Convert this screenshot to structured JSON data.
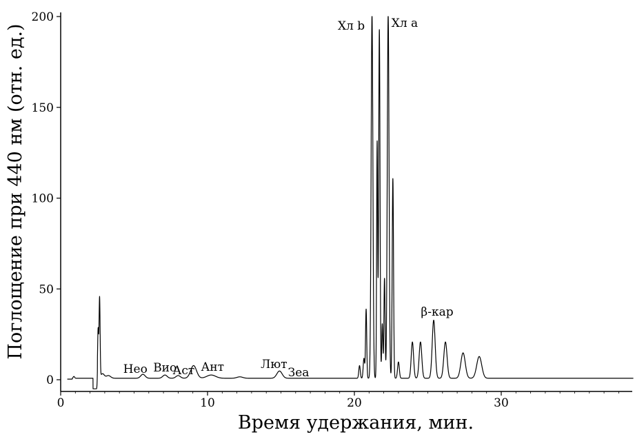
{
  "chart_data": {
    "type": "line",
    "title": "",
    "xlabel": "Время удержания, мин.",
    "ylabel": "Поглощение при 440 нм (отн. ед.)",
    "xlim": [
      0,
      39
    ],
    "ylim": [
      -5,
      200
    ],
    "xticks": [
      0,
      10,
      20,
      30
    ],
    "yticks": [
      0,
      50,
      100,
      150,
      200
    ],
    "grid": false,
    "legend": "none",
    "line_color": "#000000",
    "baseline": 0.8,
    "peaks": [
      {
        "t": 0.9,
        "h": 1.0,
        "w": 0.05
      },
      {
        "t": 2.55,
        "h": 27.0,
        "w": 0.035
      },
      {
        "t": 2.65,
        "h": 44.0,
        "w": 0.035
      },
      {
        "t": 2.85,
        "h": 2.5,
        "w": 0.12
      },
      {
        "t": 3.25,
        "h": 1.5,
        "w": 0.15
      },
      {
        "t": 5.6,
        "h": 2.2,
        "w": 0.15
      },
      {
        "t": 7.1,
        "h": 1.8,
        "w": 0.15
      },
      {
        "t": 8.0,
        "h": 1.5,
        "w": 0.15
      },
      {
        "t": 9.05,
        "h": 7.0,
        "w": 0.2
      },
      {
        "t": 10.25,
        "h": 1.8,
        "w": 0.3
      },
      {
        "t": 12.2,
        "h": 0.8,
        "w": 0.2
      },
      {
        "t": 14.9,
        "h": 4.0,
        "w": 0.18
      },
      {
        "t": 20.35,
        "h": 7.0,
        "w": 0.05
      },
      {
        "t": 20.65,
        "h": 11.0,
        "w": 0.05
      },
      {
        "t": 20.8,
        "h": 38.0,
        "w": 0.04
      },
      {
        "t": 21.2,
        "h": 200.0,
        "w": 0.06
      },
      {
        "t": 21.55,
        "h": 130.0,
        "w": 0.035
      },
      {
        "t": 21.7,
        "h": 192.0,
        "w": 0.045
      },
      {
        "t": 21.9,
        "h": 30.0,
        "w": 0.04
      },
      {
        "t": 22.05,
        "h": 55.0,
        "w": 0.04
      },
      {
        "t": 22.3,
        "h": 200.0,
        "w": 0.06
      },
      {
        "t": 22.62,
        "h": 110.0,
        "w": 0.045
      },
      {
        "t": 23.0,
        "h": 9.0,
        "w": 0.06
      },
      {
        "t": 23.95,
        "h": 20.0,
        "w": 0.08
      },
      {
        "t": 24.5,
        "h": 20.0,
        "w": 0.09
      },
      {
        "t": 25.4,
        "h": 32.0,
        "w": 0.1
      },
      {
        "t": 26.2,
        "h": 20.0,
        "w": 0.11
      },
      {
        "t": 27.4,
        "h": 14.0,
        "w": 0.15
      },
      {
        "t": 28.5,
        "h": 12.0,
        "w": 0.17
      }
    ],
    "dip": {
      "from": 2.2,
      "to": 2.5,
      "depth": -6.0
    },
    "annotations": [
      {
        "text": "Нео",
        "t": 5.6
      },
      {
        "text": "Вио",
        "t": 7.1
      },
      {
        "text": "Аст",
        "t": 8.0
      },
      {
        "text": "Ант",
        "t": 10.2
      },
      {
        "text": "Лют",
        "t": 14.9
      },
      {
        "text": "Зеа",
        "t": 16.2
      },
      {
        "text": "Хл b",
        "t": 21.2
      },
      {
        "text": "Хл a",
        "t": 22.3
      },
      {
        "text": "β-кар",
        "t": 25.4
      }
    ]
  }
}
